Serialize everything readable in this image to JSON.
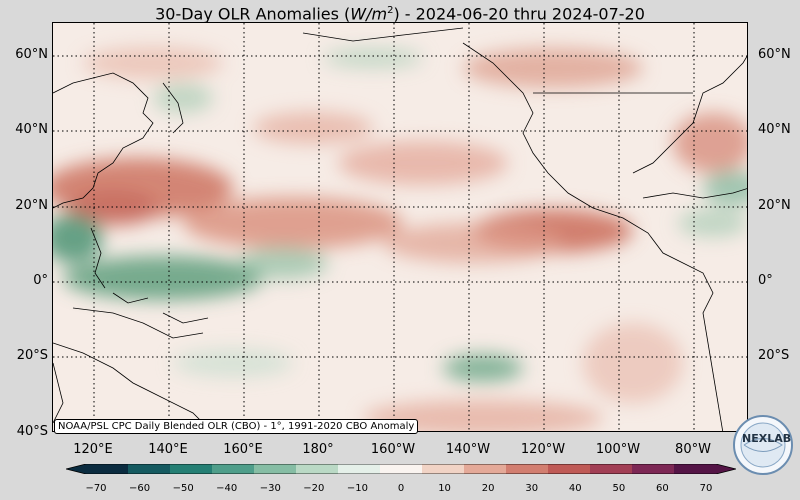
{
  "title": {
    "prefix": "30-Day OLR Anomalies (",
    "unit_var": "W/m",
    "unit_sup": "2",
    "suffix": ") - 2024-06-20 thru 2024-07-20"
  },
  "lat_labels": [
    "60°N",
    "40°N",
    "20°N",
    "0°",
    "20°S",
    "40°S"
  ],
  "lon_labels": [
    "120°E",
    "140°E",
    "160°E",
    "180°",
    "160°W",
    "140°W",
    "120°W",
    "100°W",
    "80°W"
  ],
  "credit": "NOAA/PSL CPC Daily Blended OLR (CBO) - 1°, 1991-2020 CBO Anomaly",
  "colorbar": {
    "ticks": [
      "−70",
      "−60",
      "−50",
      "−40",
      "−30",
      "−20",
      "−10",
      "0",
      "10",
      "20",
      "30",
      "40",
      "50",
      "60",
      "70"
    ],
    "colors": [
      "#0b2c40",
      "#155a60",
      "#257f74",
      "#4f9e8a",
      "#86bda4",
      "#bad9c5",
      "#e5f0e9",
      "#faf4f0",
      "#f1d3c5",
      "#e4a998",
      "#d27e70",
      "#bf5a56",
      "#a23f55",
      "#7d2855",
      "#541446"
    ]
  },
  "logo": {
    "text": "NEXLAB",
    "icon": "nexlab-globe-logo"
  },
  "colors": {
    "positive": "#d07b6c",
    "negative": "#5aa07e",
    "neutral": "#f6ece6"
  }
}
